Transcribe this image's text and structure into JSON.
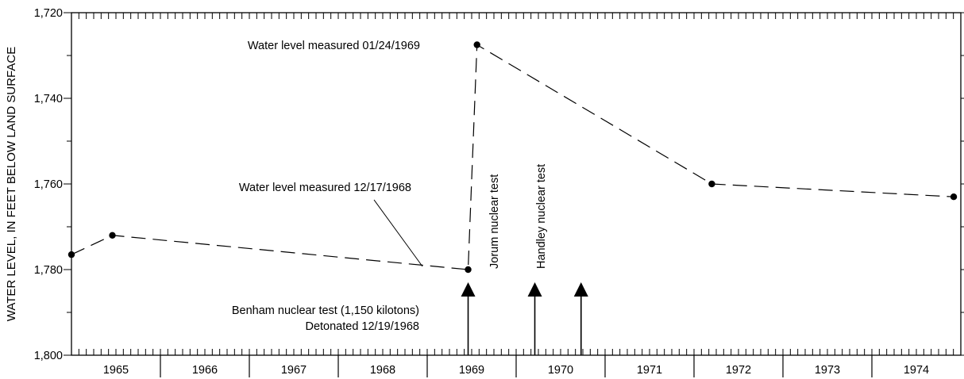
{
  "chart_data": {
    "type": "line",
    "ylabel": "WATER LEVEL, IN FEET BELOW LAND SURFACE",
    "ylim": [
      1720,
      1800
    ],
    "y_inverted": true,
    "y_ticks": [
      "1,720",
      "1,740",
      "1,760",
      "1,780",
      "1,800"
    ],
    "x_range": [
      1964.5,
      1974.5
    ],
    "x_tick_labels": [
      "1965",
      "1966",
      "1967",
      "1968",
      "1969",
      "1970",
      "1971",
      "1972",
      "1973",
      "1974"
    ],
    "grid": false,
    "series": [
      {
        "line_style": "dashed",
        "points": [
          {
            "x": 1964.5,
            "y": 1776.5
          },
          {
            "x": 1964.96,
            "y": 1772
          },
          {
            "x": 1968.96,
            "y": 1780
          },
          {
            "x": 1969.06,
            "y": 1727.5
          },
          {
            "x": 1971.7,
            "y": 1760
          },
          {
            "x": 1974.42,
            "y": 1763
          }
        ]
      }
    ],
    "annotations": {
      "peak_measure": "Water level measured 01/24/1969",
      "low_measure": "Water level measured 12/17/1968",
      "benham": "Benham nuclear test (1,150 kilotons)",
      "benham_date": "Detonated 12/19/1968",
      "jorum": "Jorum nuclear test",
      "handley": "Handley nuclear test"
    },
    "events": [
      {
        "name": "Benham",
        "x": 1968.96
      },
      {
        "name": "Jorum",
        "x": 1969.71
      },
      {
        "name": "Handley",
        "x": 1970.23
      }
    ]
  }
}
